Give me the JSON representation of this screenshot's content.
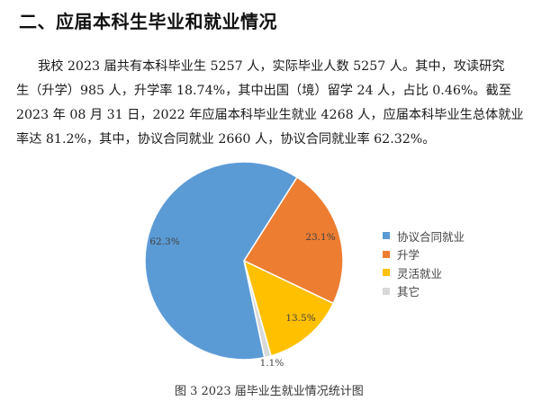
{
  "heading": "二、应届本科生毕业和就业情况",
  "paragraph": {
    "lines": [
      "我校 2023 届共有本科毕业生 5257 人，实际毕业人数 5257 人。其中，攻读研究",
      "生（升学）985 人，升学率 18.74%，其中出国（境）留学 24 人，占比 0.46%。截至",
      "2023 年 08 月 31 日，2022 年应届本科毕业生就业 4268 人，应届本科毕业生总体就业",
      "率达 81.2%，其中，协议合同就业 2660 人，协议合同就业率 62.32%。"
    ]
  },
  "chart_data": {
    "type": "pie",
    "title": "图 3 2023 届毕业生就业情况统计图",
    "categories": [
      "协议合同就业",
      "升学",
      "灵活就业",
      "其它"
    ],
    "values": [
      62.3,
      23.1,
      13.5,
      1.1
    ],
    "labels": [
      "62.3%",
      "23.1%",
      "13.5%",
      "1.1%"
    ],
    "colors": [
      "#5B9BD5",
      "#ED7D31",
      "#FFC000",
      "#D9D9D9"
    ],
    "legend_position": "right",
    "start_angle_deg": 32.4
  },
  "legend": {
    "items": [
      {
        "label": "协议合同就业",
        "color": "#5B9BD5"
      },
      {
        "label": "升学",
        "color": "#ED7D31"
      },
      {
        "label": "灵活就业",
        "color": "#FFC000"
      },
      {
        "label": "其它",
        "color": "#D9D9D9"
      }
    ]
  },
  "caption": "图 3 2023 届毕业生就业情况统计图"
}
